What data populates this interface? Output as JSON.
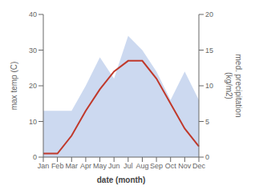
{
  "chart_data": {
    "type": "line",
    "categories": [
      "Jan",
      "Feb",
      "Mar",
      "Apr",
      "May",
      "Jun",
      "Jul",
      "Aug",
      "Sep",
      "Oct",
      "Nov",
      "Dec"
    ],
    "series": [
      {
        "type": "area",
        "axis": "y2",
        "color": "#b0c4e8",
        "values": [
          6.5,
          6.5,
          6.5,
          10,
          14,
          11,
          17,
          15,
          12,
          8,
          12,
          8
        ]
      },
      {
        "type": "line",
        "color": "#c0392b",
        "values": [
          1,
          1,
          6,
          13,
          19,
          24,
          27,
          27,
          22,
          15,
          8,
          3
        ]
      }
    ],
    "xlabel": "date (month)",
    "ylabel": "max temp (C)",
    "y2label": "med. precipitation\n(kg/m2)",
    "ylim": [
      0,
      40
    ],
    "yticks": [
      0,
      10,
      20,
      30,
      40
    ],
    "y2lim": [
      0,
      20
    ],
    "y2ticks": [
      0,
      5,
      10,
      15,
      20
    ],
    "grid": false
  }
}
